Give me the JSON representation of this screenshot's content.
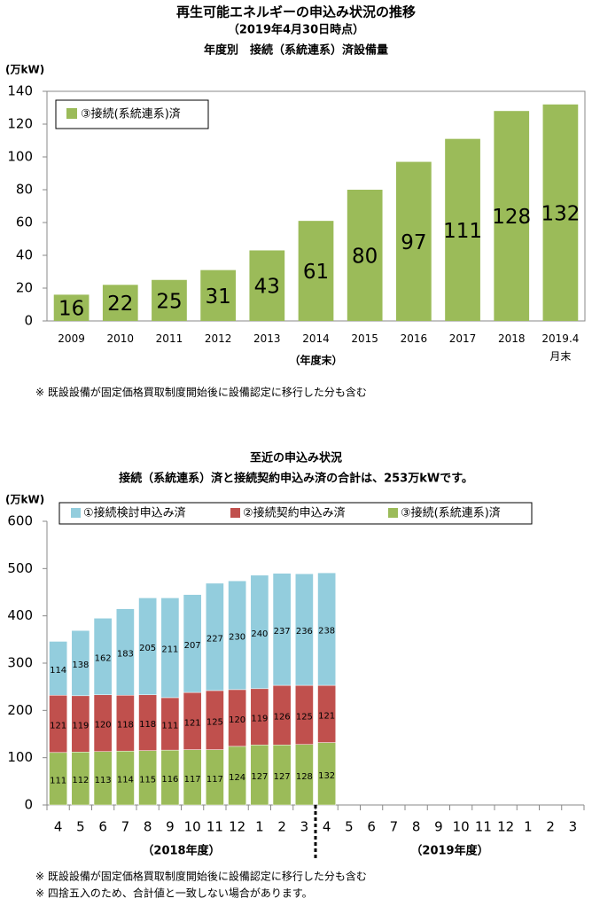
{
  "chart_data": [
    {
      "type": "bar",
      "title": "再生可能エネルギーの申込み状況の推移",
      "date": "（2019年4月30日時点）",
      "subtitle": "年度別　接続（系統連系）済設備量",
      "y_label": "(万kW)",
      "x_label": "（年度末）",
      "categories": [
        "2009",
        "2010",
        "2011",
        "2012",
        "2013",
        "2014",
        "2015",
        "2016",
        "2017",
        "2018",
        "2019.4\n月末"
      ],
      "series": [
        {
          "name": "③接続(系統連系)済",
          "color": "#9bbb59",
          "values": [
            16,
            22,
            25,
            31,
            43,
            61,
            80,
            97,
            111,
            128,
            132
          ]
        }
      ],
      "ylim": [
        0,
        140
      ],
      "yticks": [
        0,
        20,
        40,
        60,
        80,
        100,
        120,
        140
      ],
      "legend": "upper left",
      "note": "※ 既設設備が固定価格買取制度開始後に設備認定に移行した分も含む"
    },
    {
      "type": "stacked_bar",
      "title": "至近の申込み状況",
      "subtitle": "接続（系統連系）済と接続契約申込み済の合計は、253万kWです。",
      "y_label": "(万kW)",
      "categories": [
        "4",
        "5",
        "6",
        "7",
        "8",
        "9",
        "10",
        "11",
        "12",
        "1",
        "2",
        "3",
        "4",
        "5",
        "6",
        "7",
        "8",
        "9",
        "10",
        "11",
        "12",
        "1",
        "2",
        "3"
      ],
      "group_labels": [
        "（2018年度）",
        "（2019年度）"
      ],
      "series": [
        {
          "name": "①接続検討申込み済",
          "color": "#93cddd",
          "values": [
            114,
            138,
            162,
            183,
            205,
            211,
            207,
            227,
            230,
            240,
            237,
            236,
            238,
            null,
            null,
            null,
            null,
            null,
            null,
            null,
            null,
            null,
            null,
            null
          ]
        },
        {
          "name": "②接続契約申込み済",
          "color": "#c0504d",
          "values": [
            121,
            119,
            120,
            118,
            118,
            111,
            121,
            125,
            120,
            119,
            126,
            125,
            121,
            null,
            null,
            null,
            null,
            null,
            null,
            null,
            null,
            null,
            null,
            null
          ]
        },
        {
          "name": "③接続(系統連系)済",
          "color": "#9bbb59",
          "values": [
            111,
            112,
            113,
            114,
            115,
            116,
            117,
            117,
            124,
            127,
            127,
            128,
            132,
            null,
            null,
            null,
            null,
            null,
            null,
            null,
            null,
            null,
            null,
            null
          ]
        }
      ],
      "ylim": [
        0,
        600
      ],
      "yticks": [
        0,
        100,
        200,
        300,
        400,
        500,
        600
      ],
      "legend": "upper center",
      "notes": [
        "※ 既設設備が固定価格買取制度開始後に設備認定に移行した分も含む",
        "※ 四捨五入のため、合計値と一致しない場合があります。"
      ]
    }
  ]
}
